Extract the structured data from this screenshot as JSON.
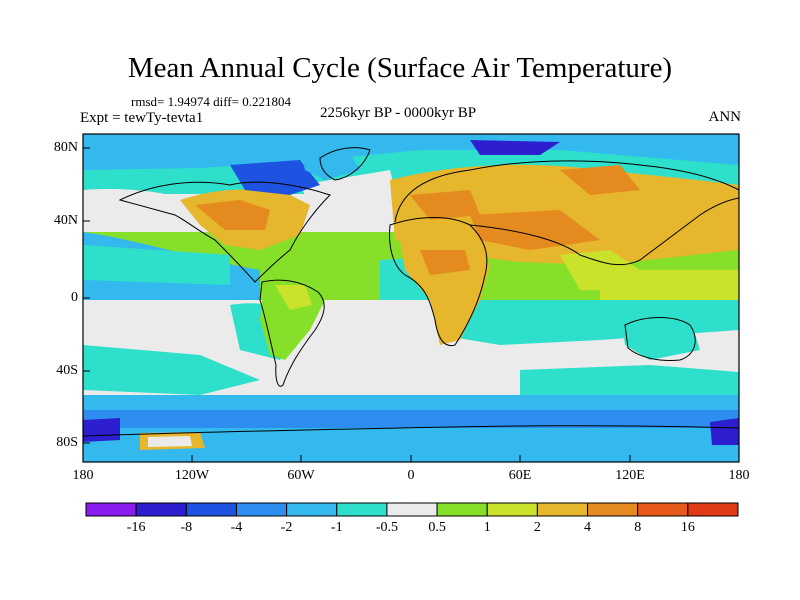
{
  "title": "Mean Annual Cycle (Surface Air Temperature)",
  "stats": "rmsd= 1.94974 diff= 0.221804",
  "experiment": "Expt = tewTy-tevta1",
  "period": "2256kyr BP - 0000kyr BP",
  "season": "ANN",
  "map": {
    "type": "filled-contour world map",
    "variable": "Surface Air Temperature difference",
    "lon_range": [
      -180,
      180
    ],
    "lat_range": [
      -90,
      90
    ],
    "y_ticks": [
      "80N",
      "40N",
      "0",
      "40S",
      "80S"
    ],
    "x_ticks": [
      "180",
      "120W",
      "60W",
      "0",
      "60E",
      "120E",
      "180"
    ]
  },
  "colorbar": {
    "labels": [
      "-16",
      "-8",
      "-4",
      "-2",
      "-1",
      "-0.5",
      "0.5",
      "1",
      "2",
      "4",
      "8",
      "16"
    ],
    "colors": [
      "#8a1cf0",
      "#2d1ed0",
      "#1e52e0",
      "#2d8ef0",
      "#33b9ee",
      "#2ee0cc",
      "#ebebeb",
      "#86e02a",
      "#cbe22a",
      "#e6b62c",
      "#e48a1e",
      "#e85a1a",
      "#e13a16"
    ]
  }
}
